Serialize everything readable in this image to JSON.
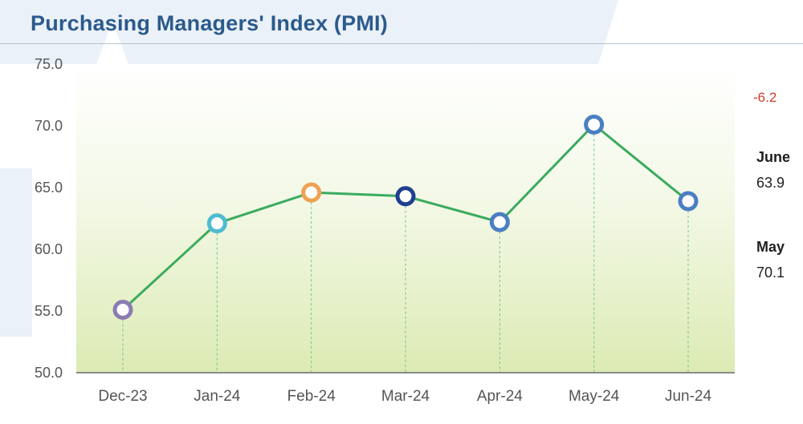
{
  "title": "Purchasing Managers' Index (PMI)",
  "colors": {
    "line": "#3bab5e",
    "title": "#2b5a8c",
    "change": "#d03a2e"
  },
  "side_panel": {
    "change": "-6.2",
    "current_label": "June",
    "current_value": "63.9",
    "previous_label": "May",
    "previous_value": "70.1"
  },
  "chart_data": {
    "type": "line",
    "title": "Purchasing Managers' Index (PMI)",
    "xlabel": "",
    "ylabel": "",
    "categories": [
      "Dec-23",
      "Jan-24",
      "Feb-24",
      "Mar-24",
      "Apr-24",
      "May-24",
      "Jun-24"
    ],
    "series": [
      {
        "values": [
          55.1,
          62.1,
          64.6,
          64.3,
          62.2,
          70.1,
          63.9
        ],
        "marker_colors": [
          "#8b7bb3",
          "#4fbbd0",
          "#eea153",
          "#1f3f8f",
          "#4a7fc1",
          "#4a7fc1",
          "#4a7fc1"
        ]
      }
    ],
    "ylim": [
      50,
      75
    ],
    "yticks": [
      "50.0",
      "55.0",
      "60.0",
      "65.0",
      "70.0",
      "75.0"
    ],
    "grid": false,
    "drop_lines": true
  }
}
